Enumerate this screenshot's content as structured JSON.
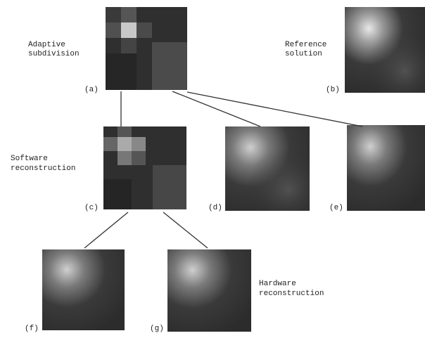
{
  "captions": {
    "adaptive": [
      "Adaptive",
      "subdivision"
    ],
    "reference": [
      "Reference",
      "solution"
    ],
    "software": [
      "Software",
      "reconstruction"
    ],
    "hardware": [
      "Hardware",
      "reconstruction"
    ]
  },
  "panels": {
    "a": "(a)",
    "b": "(b)",
    "c": "(c)",
    "d": "(d)",
    "e": "(e)",
    "f": "(f)",
    "g": "(g)"
  }
}
